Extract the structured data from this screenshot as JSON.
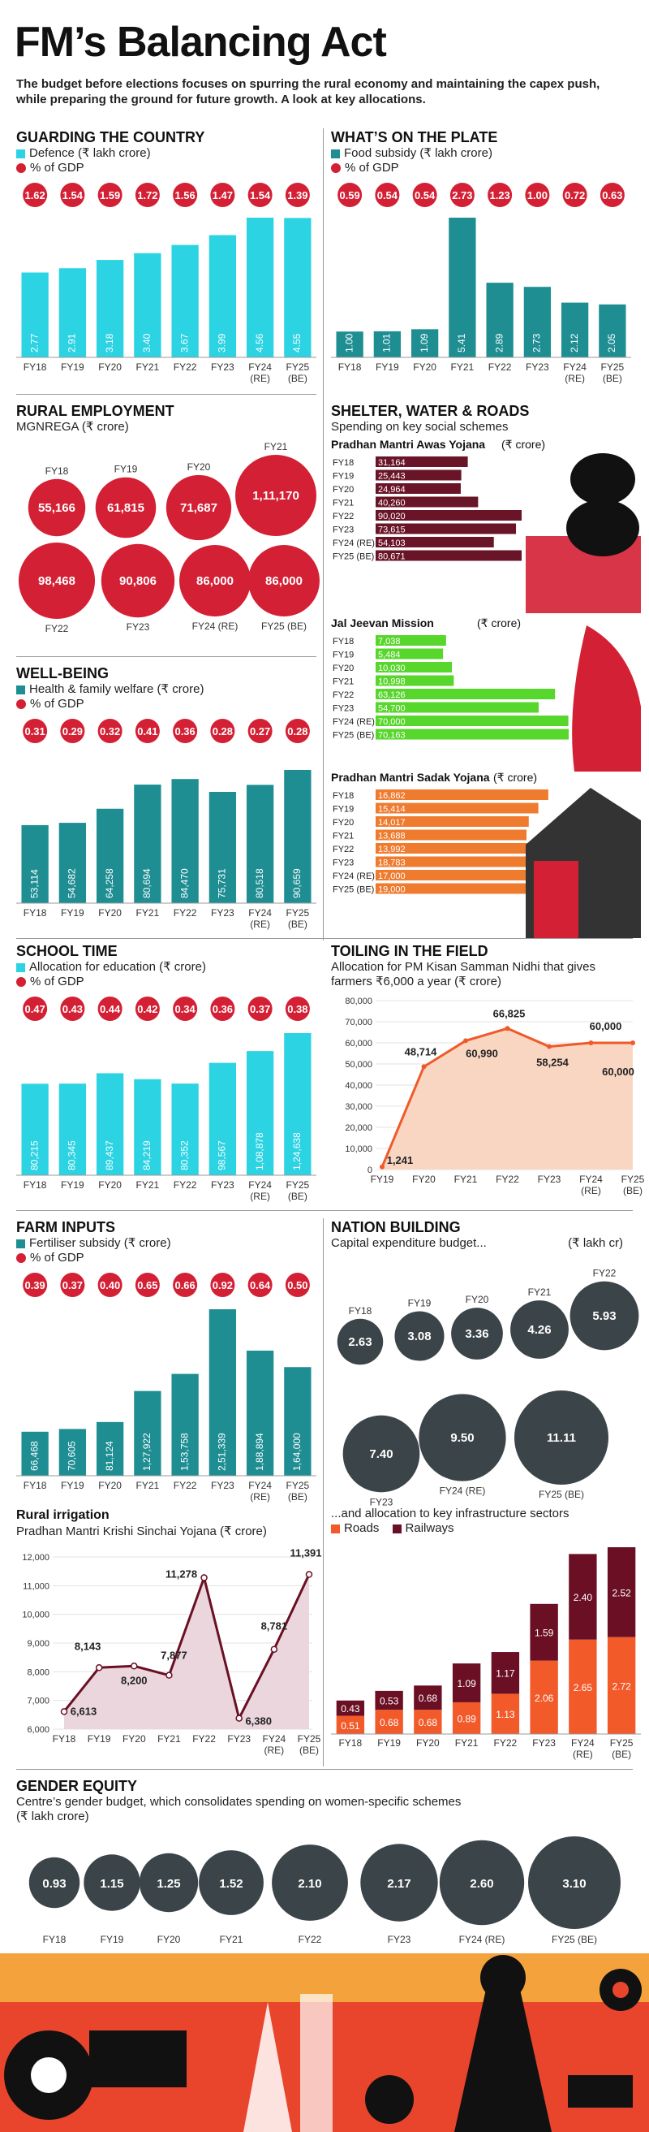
{
  "header": {
    "title": "FM’s Balancing Act",
    "subtitle": "The budget before elections focuses on spurring the rural economy and maintaining the capex push, while preparing the ground for future growth. A look at key allocations."
  },
  "colors": {
    "red": "#d42034",
    "teal": "#1f8e93",
    "cyan": "#2cd3e2",
    "dark": "#3b4448",
    "green": "#57d62b",
    "orange": "#ef7b2f",
    "maroon": "#6a1428",
    "roads": "#f25a2a",
    "railways": "#6b1024"
  },
  "charts": {
    "defence": {
      "title": "GUARDING THE COUNTRY",
      "legend_bar": "Defence (₹ lakh crore)",
      "legend_dot": "% of GDP",
      "categories": [
        "FY18",
        "FY19",
        "FY20",
        "FY21",
        "FY22",
        "FY23",
        "FY24 (RE)",
        "FY25 (BE)"
      ],
      "values": [
        2.77,
        2.91,
        3.18,
        3.4,
        3.67,
        3.99,
        4.56,
        4.55
      ],
      "labels": [
        "2.77",
        "2.91",
        "3.18",
        "3.40",
        "3.67",
        "3.99",
        "4.56",
        "4.55"
      ],
      "gdp": [
        "1.62",
        "1.54",
        "1.59",
        "1.72",
        "1.56",
        "1.47",
        "1.54",
        "1.39"
      ]
    },
    "food": {
      "title": "WHAT’S ON THE PLATE",
      "legend_bar": "Food subsidy (₹ lakh crore)",
      "legend_dot": "% of GDP",
      "categories": [
        "FY18",
        "FY19",
        "FY20",
        "FY21",
        "FY22",
        "FY23",
        "FY24 (RE)",
        "FY25 (BE)"
      ],
      "values": [
        1.0,
        1.01,
        1.09,
        5.41,
        2.89,
        2.73,
        2.12,
        2.05
      ],
      "labels": [
        "1.00",
        "1.01",
        "1.09",
        "5.41",
        "2.89",
        "2.73",
        "2.12",
        "2.05"
      ],
      "gdp": [
        "0.59",
        "0.54",
        "0.54",
        "2.73",
        "1.23",
        "1.00",
        "0.72",
        "0.63"
      ]
    },
    "mgnrega": {
      "title": "RURAL EMPLOYMENT",
      "subtitle": "MGNREGA (₹ crore)",
      "items": [
        {
          "label": "FY18",
          "value": 55166,
          "text": "55,166"
        },
        {
          "label": "FY19",
          "value": 61815,
          "text": "61,815"
        },
        {
          "label": "FY20",
          "value": 71687,
          "text": "71,687"
        },
        {
          "label": "FY21",
          "value": 111170,
          "text": "1,11,170"
        },
        {
          "label": "FY22",
          "value": 98468,
          "text": "98,468"
        },
        {
          "label": "FY23",
          "value": 90806,
          "text": "90,806"
        },
        {
          "label": "FY24 (RE)",
          "value": 86000,
          "text": "86,000"
        },
        {
          "label": "FY25 (BE)",
          "value": 86000,
          "text": "86,000"
        }
      ]
    },
    "health": {
      "title": "WELL-BEING",
      "legend_bar": "Health & family welfare (₹ crore)",
      "legend_dot": "% of GDP",
      "categories": [
        "FY18",
        "FY19",
        "FY20",
        "FY21",
        "FY22",
        "FY23",
        "FY24 (RE)",
        "FY25 (BE)"
      ],
      "values": [
        53114,
        54682,
        64258,
        80694,
        84470,
        75731,
        80518,
        90659
      ],
      "labels": [
        "53,114",
        "54,682",
        "64,258",
        "80,694",
        "84,470",
        "75,731",
        "80,518",
        "90,659"
      ],
      "gdp": [
        "0.31",
        "0.29",
        "0.32",
        "0.41",
        "0.36",
        "0.28",
        "0.27",
        "0.28"
      ]
    },
    "education": {
      "title": "SCHOOL TIME",
      "legend_bar": "Allocation for education (₹ crore)",
      "legend_dot": "% of GDP",
      "categories": [
        "FY18",
        "FY19",
        "FY20",
        "FY21",
        "FY22",
        "FY23",
        "FY24 (RE)",
        "FY25 (BE)"
      ],
      "values": [
        80215,
        80345,
        89437,
        84219,
        80352,
        98567,
        108878,
        124638
      ],
      "labels": [
        "80,215",
        "80,345",
        "89,437",
        "84,219",
        "80,352",
        "98,567",
        "1,08,878",
        "1,24,638"
      ],
      "gdp": [
        "0.47",
        "0.43",
        "0.44",
        "0.42",
        "0.34",
        "0.36",
        "0.37",
        "0.38"
      ]
    },
    "fertiliser": {
      "title": "FARM INPUTS",
      "legend_bar": "Fertiliser subsidy (₹ crore)",
      "legend_dot": "% of GDP",
      "categories": [
        "FY18",
        "FY19",
        "FY20",
        "FY21",
        "FY22",
        "FY23",
        "FY24 (RE)",
        "FY25 (BE)"
      ],
      "values": [
        66468,
        70605,
        81124,
        127922,
        153758,
        251339,
        188894,
        164000
      ],
      "labels": [
        "66,468",
        "70,605",
        "81,124",
        "1,27,922",
        "1,53,758",
        "2,51,339",
        "1,88,894",
        "1,64,000"
      ],
      "gdp": [
        "0.39",
        "0.37",
        "0.40",
        "0.65",
        "0.66",
        "0.92",
        "0.64",
        "0.50"
      ]
    },
    "shelter": {
      "title": "SHELTER, WATER & ROADS",
      "subtitle": "Spending on key social schemes",
      "schemes": [
        {
          "name": "Pradhan Mantri Awas Yojana",
          "unit": "(₹ crore)",
          "color": "#6a1428",
          "categories": [
            "FY18",
            "FY19",
            "FY20",
            "FY21",
            "FY22",
            "FY23",
            "FY24 (RE)",
            "FY25 (BE)"
          ],
          "values": [
            31164,
            25443,
            24964,
            40260,
            90020,
            73615,
            54103,
            80671
          ],
          "labels": [
            "31,164",
            "25,443",
            "24,964",
            "40,260",
            "90,020",
            "73,615",
            "54,103",
            "80,671"
          ]
        },
        {
          "name": "Jal Jeevan Mission",
          "unit": "(₹ crore)",
          "color": "#57d62b",
          "categories": [
            "FY18",
            "FY19",
            "FY20",
            "FY21",
            "FY22",
            "FY23",
            "FY24 (RE)",
            "FY25 (BE)"
          ],
          "values": [
            7038,
            5484,
            10030,
            10998,
            63126,
            54700,
            70000,
            70163
          ],
          "labels": [
            "7,038",
            "5,484",
            "10,030",
            "10,998",
            "63,126",
            "54,700",
            "70,000",
            "70,163"
          ]
        },
        {
          "name": "Pradhan Mantri Sadak Yojana",
          "unit": "(₹ crore)",
          "color": "#ef7b2f",
          "categories": [
            "FY18",
            "FY19",
            "FY20",
            "FY21",
            "FY22",
            "FY23",
            "FY24 (RE)",
            "FY25 (BE)"
          ],
          "values": [
            16862,
            15414,
            14017,
            13688,
            13992,
            18783,
            17000,
            19000
          ],
          "labels": [
            "16,862",
            "15,414",
            "14,017",
            "13,688",
            "13,992",
            "18,783",
            "17,000",
            "19,000"
          ]
        }
      ]
    },
    "kisan": {
      "title": "TOILING IN THE FIELD",
      "subtitle": "Allocation for PM Kisan Samman Nidhi that gives farmers ₹6,000 a year (₹ crore)",
      "categories": [
        "FY19",
        "FY20",
        "FY21",
        "FY22",
        "FY23",
        "FY24 (RE)",
        "FY25 (BE)"
      ],
      "values": [
        1241,
        48714,
        60990,
        66825,
        58254,
        60000,
        60000
      ],
      "labels": [
        "1,241",
        "48,714",
        "60,990",
        "66,825",
        "58,254",
        "60,000",
        "60,000"
      ],
      "yticks": [
        "0",
        "10,000",
        "20,000",
        "30,000",
        "40,000",
        "50,000",
        "60,000",
        "70,000",
        "80,000"
      ]
    },
    "capex": {
      "title": "NATION BUILDING",
      "subtitle": "Capital expenditure budget...",
      "unit": "(₹ lakh cr)",
      "items": [
        {
          "label": "FY18",
          "value": 2.63,
          "text": "2.63"
        },
        {
          "label": "FY19",
          "value": 3.08,
          "text": "3.08"
        },
        {
          "label": "FY20",
          "value": 3.36,
          "text": "3.36"
        },
        {
          "label": "FY21",
          "value": 4.26,
          "text": "4.26"
        },
        {
          "label": "FY22",
          "value": 5.93,
          "text": "5.93"
        },
        {
          "label": "FY23",
          "value": 7.4,
          "text": "7.40"
        },
        {
          "label": "FY24 (RE)",
          "value": 9.5,
          "text": "9.50"
        },
        {
          "label": "FY25 (BE)",
          "value": 11.11,
          "text": "11.11"
        }
      ]
    },
    "irrigation": {
      "title": "Rural irrigation",
      "subtitle": "Pradhan Mantri Krishi Sinchai Yojana",
      "unit": "(₹ crore)",
      "categories": [
        "FY18",
        "FY19",
        "FY20",
        "FY21",
        "FY22",
        "FY23",
        "FY24 (RE)",
        "FY25 (BE)"
      ],
      "values": [
        6613,
        8143,
        8200,
        7877,
        11278,
        6380,
        8781,
        11391
      ],
      "labels": [
        "6,613",
        "8,143",
        "8,200",
        "7,877",
        "11,278",
        "6,380",
        "8,781",
        "11,391"
      ],
      "yticks": [
        "6,000",
        "7,000",
        "8,000",
        "9,000",
        "10,000",
        "11,000",
        "12,000"
      ]
    },
    "infra": {
      "subtitle": "...and allocation to key infrastructure sectors",
      "legend": [
        "Roads",
        "Railways"
      ],
      "categories": [
        "FY18",
        "FY19",
        "FY20",
        "FY21",
        "FY22",
        "FY23",
        "FY24 (RE)",
        "FY25 (BE)"
      ],
      "roads": [
        0.51,
        0.68,
        0.68,
        0.89,
        1.13,
        2.06,
        2.65,
        2.72
      ],
      "railways": [
        0.43,
        0.53,
        0.68,
        1.09,
        1.17,
        1.59,
        2.4,
        2.52
      ],
      "roads_labels": [
        "0.51",
        "0.68",
        "0.68",
        "0.89",
        "1.13",
        "2.06",
        "2.65",
        "2.72"
      ],
      "railways_labels": [
        "0.43",
        "0.53",
        "0.68",
        "1.09",
        "1.17",
        "1.59",
        "2.40",
        "2.52"
      ]
    },
    "gender": {
      "title": "GENDER EQUITY",
      "subtitle": "Centre’s gender budget, which consolidates spending on women-specific schemes",
      "unit": "(₹ lakh crore)",
      "items": [
        {
          "label": "FY18",
          "value": 0.93,
          "text": "0.93"
        },
        {
          "label": "FY19",
          "value": 1.15,
          "text": "1.15"
        },
        {
          "label": "FY20",
          "value": 1.25,
          "text": "1.25"
        },
        {
          "label": "FY21",
          "value": 1.52,
          "text": "1.52"
        },
        {
          "label": "FY22",
          "value": 2.1,
          "text": "2.10"
        },
        {
          "label": "FY23",
          "value": 2.17,
          "text": "2.17"
        },
        {
          "label": "FY24 (RE)",
          "value": 2.6,
          "text": "2.60"
        },
        {
          "label": "FY25 (BE)",
          "value": 3.1,
          "text": "3.10"
        }
      ]
    }
  },
  "chart_data": [
    {
      "type": "bar",
      "title": "GUARDING THE COUNTRY",
      "categories": [
        "FY18",
        "FY19",
        "FY20",
        "FY21",
        "FY22",
        "FY23",
        "FY24 (RE)",
        "FY25 (BE)"
      ],
      "series": [
        {
          "name": "Defence (₹ lakh crore)",
          "values": [
            2.77,
            2.91,
            3.18,
            3.4,
            3.67,
            3.99,
            4.56,
            4.55
          ]
        },
        {
          "name": "% of GDP",
          "values": [
            1.62,
            1.54,
            1.59,
            1.72,
            1.56,
            1.47,
            1.54,
            1.39
          ]
        }
      ]
    },
    {
      "type": "bar",
      "title": "WHAT’S ON THE PLATE",
      "categories": [
        "FY18",
        "FY19",
        "FY20",
        "FY21",
        "FY22",
        "FY23",
        "FY24 (RE)",
        "FY25 (BE)"
      ],
      "series": [
        {
          "name": "Food subsidy (₹ lakh crore)",
          "values": [
            1.0,
            1.01,
            1.09,
            5.41,
            2.89,
            2.73,
            2.12,
            2.05
          ]
        },
        {
          "name": "% of GDP",
          "values": [
            0.59,
            0.54,
            0.54,
            2.73,
            1.23,
            1.0,
            0.72,
            0.63
          ]
        }
      ]
    },
    {
      "type": "scatter",
      "title": "RURAL EMPLOYMENT",
      "categories": [
        "FY18",
        "FY19",
        "FY20",
        "FY21",
        "FY22",
        "FY23",
        "FY24 (RE)",
        "FY25 (BE)"
      ],
      "series": [
        {
          "name": "MGNREGA (₹ crore)",
          "values": [
            55166,
            61815,
            71687,
            111170,
            98468,
            90806,
            86000,
            86000
          ]
        }
      ]
    },
    {
      "type": "bar",
      "title": "WELL-BEING",
      "categories": [
        "FY18",
        "FY19",
        "FY20",
        "FY21",
        "FY22",
        "FY23",
        "FY24 (RE)",
        "FY25 (BE)"
      ],
      "series": [
        {
          "name": "Health & family welfare (₹ crore)",
          "values": [
            53114,
            54682,
            64258,
            80694,
            84470,
            75731,
            80518,
            90659
          ]
        },
        {
          "name": "% of GDP",
          "values": [
            0.31,
            0.29,
            0.32,
            0.41,
            0.36,
            0.28,
            0.27,
            0.28
          ]
        }
      ]
    },
    {
      "type": "bar",
      "title": "SCHOOL TIME",
      "categories": [
        "FY18",
        "FY19",
        "FY20",
        "FY21",
        "FY22",
        "FY23",
        "FY24 (RE)",
        "FY25 (BE)"
      ],
      "series": [
        {
          "name": "Allocation for education (₹ crore)",
          "values": [
            80215,
            80345,
            89437,
            84219,
            80352,
            98567,
            108878,
            124638
          ]
        },
        {
          "name": "% of GDP",
          "values": [
            0.47,
            0.43,
            0.44,
            0.42,
            0.34,
            0.36,
            0.37,
            0.38
          ]
        }
      ]
    },
    {
      "type": "bar",
      "title": "FARM INPUTS",
      "categories": [
        "FY18",
        "FY19",
        "FY20",
        "FY21",
        "FY22",
        "FY23",
        "FY24 (RE)",
        "FY25 (BE)"
      ],
      "series": [
        {
          "name": "Fertiliser subsidy (₹ crore)",
          "values": [
            66468,
            70605,
            81124,
            127922,
            153758,
            251339,
            188894,
            164000
          ]
        },
        {
          "name": "% of GDP",
          "values": [
            0.39,
            0.37,
            0.4,
            0.65,
            0.66,
            0.92,
            0.64,
            0.5
          ]
        }
      ]
    },
    {
      "type": "bar",
      "title": "SHELTER, WATER & ROADS",
      "categories": [
        "FY18",
        "FY19",
        "FY20",
        "FY21",
        "FY22",
        "FY23",
        "FY24 (RE)",
        "FY25 (BE)"
      ],
      "series": [
        {
          "name": "Pradhan Mantri Awas Yojana",
          "values": [
            31164,
            25443,
            24964,
            40260,
            90020,
            73615,
            54103,
            80671
          ]
        },
        {
          "name": "Jal Jeevan Mission",
          "values": [
            7038,
            5484,
            10030,
            10998,
            63126,
            54700,
            70000,
            70163
          ]
        },
        {
          "name": "Pradhan Mantri Sadak Yojana",
          "values": [
            16862,
            15414,
            14017,
            13688,
            13992,
            18783,
            17000,
            19000
          ]
        }
      ]
    },
    {
      "type": "area",
      "title": "TOILING IN THE FIELD",
      "categories": [
        "FY19",
        "FY20",
        "FY21",
        "FY22",
        "FY23",
        "FY24 (RE)",
        "FY25 (BE)"
      ],
      "values": [
        1241,
        48714,
        60990,
        66825,
        58254,
        60000,
        60000
      ],
      "ylim": [
        0,
        80000
      ]
    },
    {
      "type": "scatter",
      "title": "NATION BUILDING",
      "categories": [
        "FY18",
        "FY19",
        "FY20",
        "FY21",
        "FY22",
        "FY23",
        "FY24 (RE)",
        "FY25 (BE)"
      ],
      "series": [
        {
          "name": "Capital expenditure budget...",
          "values": [
            2.63,
            3.08,
            3.36,
            4.26,
            5.93,
            7.4,
            9.5,
            11.11
          ]
        }
      ]
    },
    {
      "type": "area",
      "title": "Rural irrigation",
      "categories": [
        "FY18",
        "FY19",
        "FY20",
        "FY21",
        "FY22",
        "FY23",
        "FY24 (RE)",
        "FY25 (BE)"
      ],
      "values": [
        6613,
        8143,
        8200,
        7877,
        11278,
        6380,
        8781,
        11391
      ],
      "ylim": [
        6000,
        12000
      ]
    },
    {
      "type": "bar",
      "title": "...and allocation to key infrastructure sectors",
      "categories": [
        "FY18",
        "FY19",
        "FY20",
        "FY21",
        "FY22",
        "FY23",
        "FY24 (RE)",
        "FY25 (BE)"
      ],
      "series": [
        {
          "name": "Roads",
          "values": [
            0.51,
            0.68,
            0.68,
            0.89,
            1.13,
            2.06,
            2.65,
            2.72
          ]
        },
        {
          "name": "Railways",
          "values": [
            0.43,
            0.53,
            0.68,
            1.09,
            1.17,
            1.59,
            2.4,
            2.52
          ]
        }
      ]
    },
    {
      "type": "scatter",
      "title": "GENDER EQUITY",
      "categories": [
        "FY18",
        "FY19",
        "FY20",
        "FY21",
        "FY22",
        "FY23",
        "FY24 (RE)",
        "FY25 (BE)"
      ],
      "series": [
        {
          "name": "Centre’s gender budget",
          "values": [
            0.93,
            1.15,
            1.25,
            1.52,
            2.1,
            2.17,
            2.6,
            3.1
          ]
        }
      ]
    }
  ]
}
